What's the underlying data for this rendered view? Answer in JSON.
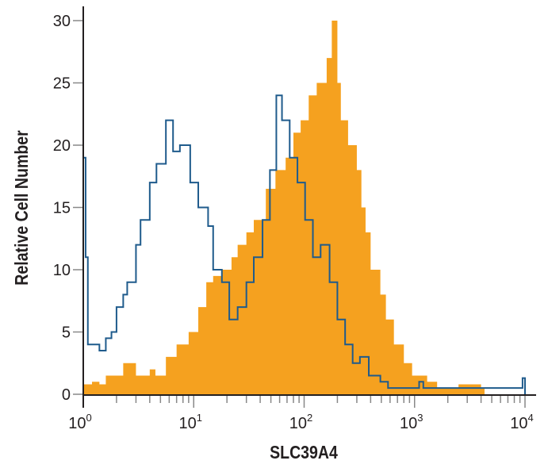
{
  "chart_data": {
    "type": "area",
    "title": "",
    "xlabel": "SLC39A4",
    "ylabel": "Relative Cell Number",
    "x_scale": "log",
    "xlim": [
      1,
      10000
    ],
    "ylim": [
      0,
      30
    ],
    "grid": false,
    "y_ticks": [
      "0",
      "5",
      "10",
      "15",
      "20",
      "25",
      "30"
    ],
    "x_ticks": [
      {
        "base": "10",
        "exp": "0"
      },
      {
        "base": "10",
        "exp": "1"
      },
      {
        "base": "10",
        "exp": "2"
      },
      {
        "base": "10",
        "exp": "3"
      },
      {
        "base": "10",
        "exp": "4"
      }
    ],
    "series": [
      {
        "style": "filled",
        "color": "#F5A11F",
        "points": [
          [
            1,
            0.8
          ],
          [
            1.2,
            1
          ],
          [
            1.4,
            0.8
          ],
          [
            1.6,
            1.5
          ],
          [
            2.3,
            2.5
          ],
          [
            3,
            1.5
          ],
          [
            4,
            2
          ],
          [
            4.5,
            1.5
          ],
          [
            5.6,
            3
          ],
          [
            7,
            4
          ],
          [
            9,
            5
          ],
          [
            11,
            7
          ],
          [
            13,
            9
          ],
          [
            15,
            9.5
          ],
          [
            18,
            10
          ],
          [
            22,
            11
          ],
          [
            25,
            12
          ],
          [
            30,
            13
          ],
          [
            35,
            14
          ],
          [
            45,
            16.5
          ],
          [
            55,
            18
          ],
          [
            68,
            19
          ],
          [
            80,
            21
          ],
          [
            93,
            22
          ],
          [
            110,
            24
          ],
          [
            130,
            25
          ],
          [
            160,
            27
          ],
          [
            178,
            30
          ],
          [
            200,
            25
          ],
          [
            215,
            22
          ],
          [
            250,
            20
          ],
          [
            300,
            18
          ],
          [
            330,
            15
          ],
          [
            360,
            13
          ],
          [
            400,
            10
          ],
          [
            490,
            8
          ],
          [
            550,
            6
          ],
          [
            650,
            4
          ],
          [
            800,
            2.5
          ],
          [
            950,
            1.5
          ],
          [
            1300,
            1
          ],
          [
            1600,
            0.5
          ],
          [
            2000,
            0.5
          ],
          [
            2500,
            0.8
          ],
          [
            4000,
            0.5
          ],
          [
            4300,
            0
          ]
        ]
      },
      {
        "style": "outline",
        "color": "#1F5B8C",
        "points": [
          [
            1,
            19
          ],
          [
            1.05,
            11
          ],
          [
            1.1,
            4
          ],
          [
            1.4,
            3.5
          ],
          [
            1.6,
            4.5
          ],
          [
            1.8,
            5
          ],
          [
            2,
            7
          ],
          [
            2.3,
            8
          ],
          [
            2.5,
            9
          ],
          [
            3,
            12
          ],
          [
            3.3,
            14
          ],
          [
            4,
            17
          ],
          [
            4.6,
            18.5
          ],
          [
            5.6,
            22
          ],
          [
            6.5,
            19.5
          ],
          [
            7.5,
            20
          ],
          [
            9.3,
            17
          ],
          [
            11,
            15
          ],
          [
            13.5,
            13.5
          ],
          [
            15,
            10
          ],
          [
            18,
            9
          ],
          [
            21,
            6
          ],
          [
            25,
            7
          ],
          [
            30,
            9
          ],
          [
            35,
            11
          ],
          [
            42,
            14
          ],
          [
            49,
            18
          ],
          [
            56,
            24
          ],
          [
            63,
            22
          ],
          [
            74,
            19
          ],
          [
            87,
            17
          ],
          [
            102,
            14
          ],
          [
            120,
            11
          ],
          [
            141,
            12
          ],
          [
            170,
            9
          ],
          [
            200,
            6
          ],
          [
            235,
            4
          ],
          [
            275,
            2.5
          ],
          [
            320,
            3
          ],
          [
            385,
            1.5
          ],
          [
            490,
            1
          ],
          [
            575,
            0.5
          ],
          [
            1100,
            1
          ],
          [
            1200,
            0.5
          ],
          [
            9500,
            1.3
          ],
          [
            10000,
            0
          ]
        ]
      }
    ]
  }
}
